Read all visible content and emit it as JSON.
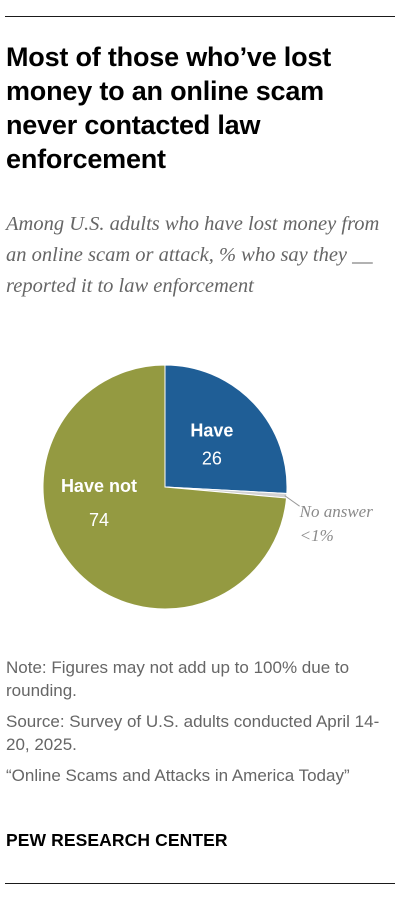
{
  "title": "Most of those who’ve lost money to an online scam never contacted law enforcement",
  "subtitle": "Among U.S. adults who have lost money from an online scam or attack, % who say they __ reported it to law enforcement",
  "chart_data": {
    "type": "pie",
    "slices": [
      {
        "name": "Have",
        "value": 26,
        "label": "26",
        "color": "#1f5e96"
      },
      {
        "name": "No answer",
        "value": 0.6,
        "label": "<1%",
        "color": "#d2d2d2"
      },
      {
        "name": "Have not",
        "value": 74,
        "label": "74",
        "color": "#949a41"
      }
    ]
  },
  "notes": {
    "note": "Note: Figures may not add up to 100% due to rounding.",
    "source": "Source: Survey of U.S. adults conducted April 14-20, 2025.",
    "report": "“Online Scams and Attacks in America Today”"
  },
  "brand": "PEW RESEARCH CENTER"
}
